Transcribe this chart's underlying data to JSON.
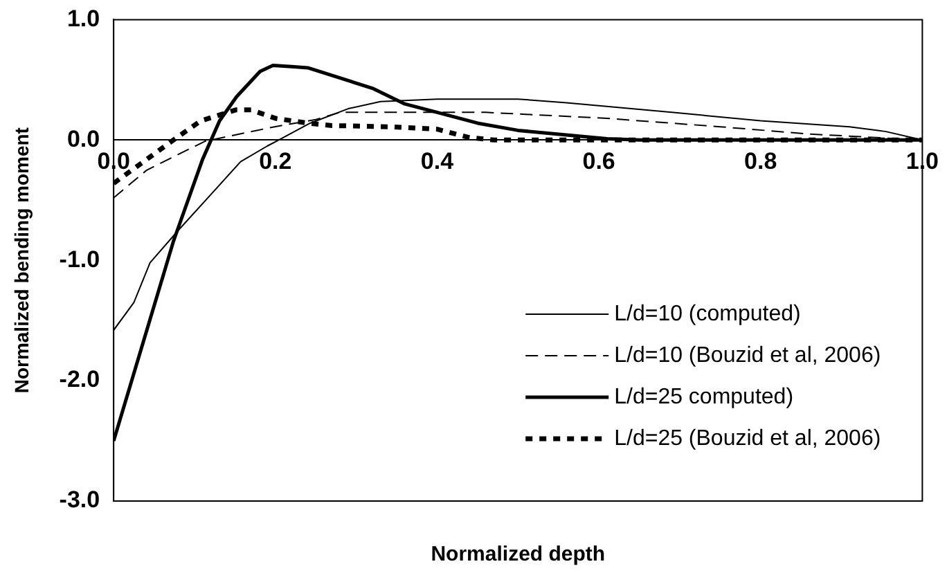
{
  "chart_data": {
    "type": "line",
    "xlabel": "Normalized depth",
    "ylabel": "Normalized bending moment",
    "xlim": [
      0,
      1
    ],
    "xticks": [
      {
        "value": 0,
        "label": "0.0"
      },
      0.2,
      0.4,
      0.6,
      0.8,
      {
        "value": 1,
        "label": "1.0"
      }
    ],
    "ylim": [
      -3,
      1
    ],
    "yticks": [
      {
        "value": -3,
        "label": "-3.0"
      },
      {
        "value": -2,
        "label": "-2.0"
      },
      {
        "value": -1,
        "label": "-1.0"
      },
      {
        "value": 0,
        "label": "0.0"
      },
      {
        "value": 1,
        "label": "1.0"
      }
    ],
    "grid": false,
    "legend": "bottom right",
    "marker": "none",
    "series": [
      {
        "name": "L/d=10 (computed)",
        "color": "#000000",
        "line_style": "solid",
        "x": [
          0,
          0.025,
          0.045,
          0.08,
          0.126,
          0.157,
          0.19,
          0.204,
          0.243,
          0.29,
          0.33,
          0.4,
          0.5,
          0.56,
          0.69,
          0.8,
          0.91,
          0.955,
          1
        ],
        "values": [
          -1.58,
          -1.35,
          -1.02,
          -0.75,
          -0.41,
          -0.18,
          -0.05,
          0,
          0.14,
          0.26,
          0.32,
          0.34,
          0.34,
          0.31,
          0.23,
          0.16,
          0.11,
          0.07,
          0
        ]
      },
      {
        "name": "L/d=10 (Bouzid et al, 2006)",
        "color": "#000000",
        "line_style": "dashed",
        "x": [
          0,
          0.041,
          0.113,
          0.199,
          0.25,
          0.28,
          0.46,
          0.61,
          0.75,
          0.86,
          1
        ],
        "values": [
          -0.48,
          -0.25,
          -0.01,
          0.11,
          0.17,
          0.23,
          0.23,
          0.18,
          0.11,
          0.05,
          0
        ]
      },
      {
        "name": "L/d=25 computed)",
        "color": "#000000",
        "line_style": "solid",
        "x": [
          0,
          0.074,
          0.11,
          0.131,
          0.152,
          0.181,
          0.197,
          0.22,
          0.24,
          0.32,
          0.36,
          0.4,
          0.45,
          0.5,
          0.61,
          0.65,
          1
        ],
        "values": [
          -2.5,
          -0.84,
          -0.16,
          0.16,
          0.36,
          0.57,
          0.62,
          0.61,
          0.6,
          0.43,
          0.3,
          0.23,
          0.14,
          0.08,
          0.01,
          0,
          0
        ]
      },
      {
        "name": "L/d=25 (Bouzid et al, 2006)",
        "color": "#000000",
        "line_style": "dotted",
        "x": [
          0,
          0.078,
          0.108,
          0.151,
          0.17,
          0.2,
          0.24,
          0.27,
          0.34,
          0.4,
          0.44,
          0.47,
          1
        ],
        "values": [
          -0.36,
          0.02,
          0.16,
          0.25,
          0.25,
          0.18,
          0.14,
          0.12,
          0.11,
          0.09,
          0.02,
          0,
          0
        ]
      }
    ]
  }
}
